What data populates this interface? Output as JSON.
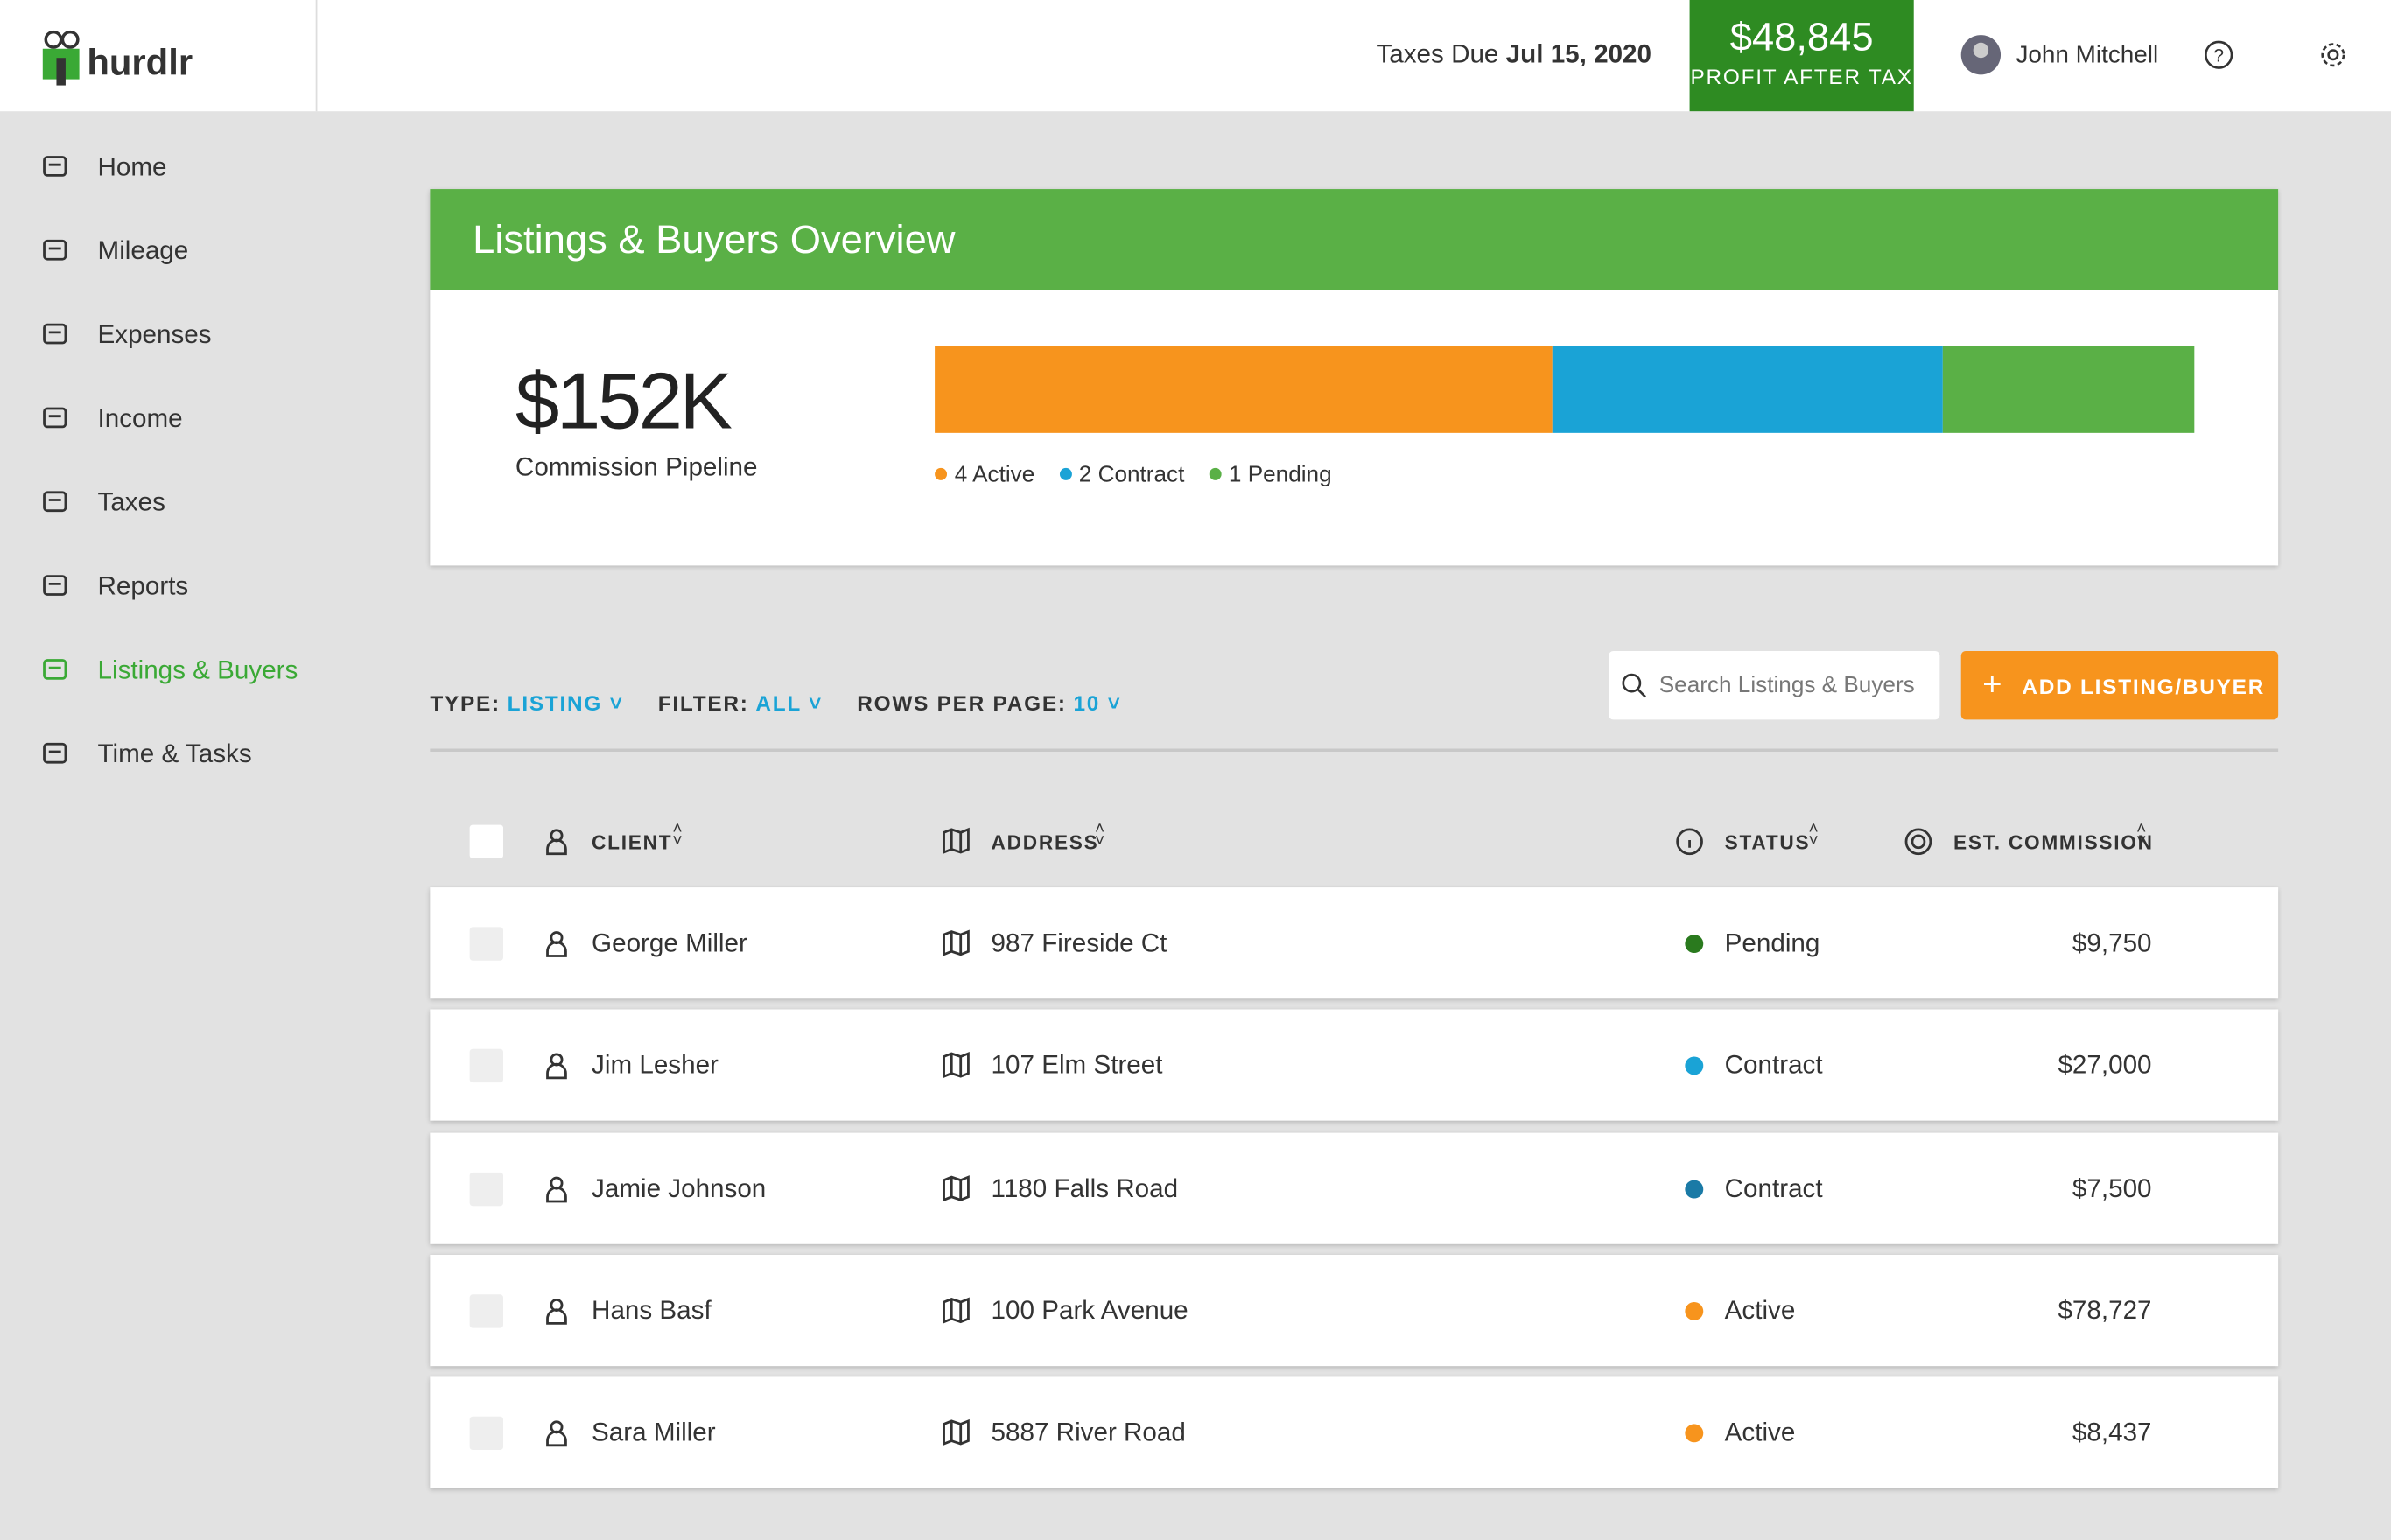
{
  "header": {
    "logo": "hurdlr",
    "taxes_label": "Taxes Due",
    "taxes_date": "Jul 15, 2020",
    "profit_value": "$48,845",
    "profit_label": "PROFIT AFTER TAX",
    "user": "John Mitchell"
  },
  "nav": [
    {
      "label": "Home",
      "active": false
    },
    {
      "label": "Mileage",
      "active": false
    },
    {
      "label": "Expenses",
      "active": false
    },
    {
      "label": "Income",
      "active": false
    },
    {
      "label": "Taxes",
      "active": false
    },
    {
      "label": "Reports",
      "active": false
    },
    {
      "label": "Listings & Buyers",
      "active": true
    },
    {
      "label": "Time & Tasks",
      "active": false
    }
  ],
  "overview": {
    "title": "Listings & Buyers Overview",
    "amount": "$152K",
    "amount_label": "Commission Pipeline",
    "segments": [
      {
        "label": "4 Active",
        "color": "#f7941d",
        "share": 49
      },
      {
        "label": "2 Contract",
        "color": "#1aa3d6",
        "share": 31
      },
      {
        "label": "1 Pending",
        "color": "#5ab046",
        "share": 20
      }
    ]
  },
  "toolbar": {
    "type_label": "TYPE:",
    "type_value": "LISTING",
    "filter_label": "FILTER:",
    "filter_value": "ALL",
    "rows_label": "ROWS PER PAGE:",
    "rows_value": "10",
    "search_placeholder": "Search Listings & Buyers",
    "add_button": "ADD LISTING/BUYER"
  },
  "table": {
    "columns": [
      "CLIENT",
      "ADDRESS",
      "STATUS",
      "EST. COMMISSION"
    ],
    "rows": [
      {
        "client": "George Miller",
        "address": "987 Fireside Ct",
        "status": "Pending",
        "status_color": "#2a7a1e",
        "commission": "$9,750"
      },
      {
        "client": "Jim Lesher",
        "address": "107 Elm Street",
        "status": "Contract",
        "status_color": "#1aa3d6",
        "commission": "$27,000"
      },
      {
        "client": "Jamie Johnson",
        "address": "1180 Falls Road",
        "status": "Contract",
        "status_color": "#1a7aa6",
        "commission": "$7,500"
      },
      {
        "client": "Hans Basf",
        "address": "100 Park Avenue",
        "status": "Active",
        "status_color": "#f7941d",
        "commission": "$78,727"
      },
      {
        "client": "Sara Miller",
        "address": "5887 River Road",
        "status": "Active",
        "status_color": "#f7941d",
        "commission": "$8,437"
      }
    ]
  }
}
